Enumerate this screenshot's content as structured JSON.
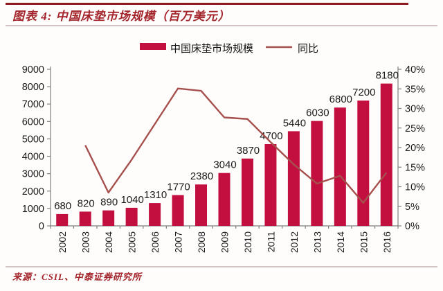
{
  "header": {
    "title": "图表 4: 中国床垫市场规模（百万美元）"
  },
  "legend": {
    "bar_label": "中国床垫市场规模",
    "line_label": "同比"
  },
  "footer": {
    "source": "来源：CSIL、中泰证券研究所"
  },
  "colors": {
    "bar": "#c30e40",
    "line": "#a6504d",
    "title_red": "#a3242a",
    "rule_dark": "#8c1c20",
    "rule_light": "#d2c3c2",
    "axis": "#7f7f7f",
    "label_text": "#1a1a1a"
  },
  "chart_data": {
    "type": "bar",
    "title": "中国床垫市场规模（百万美元）",
    "categories": [
      "2002",
      "2003",
      "2004",
      "2005",
      "2006",
      "2007",
      "2008",
      "2009",
      "2010",
      "2011",
      "2012",
      "2013",
      "2014",
      "2015",
      "2016"
    ],
    "series": [
      {
        "name": "中国床垫市场规模",
        "type": "bar",
        "axis": "left",
        "values": [
          680,
          820,
          890,
          1040,
          1310,
          1770,
          2380,
          3040,
          3870,
          4700,
          5440,
          6030,
          6800,
          7200,
          8180
        ]
      },
      {
        "name": "同比",
        "type": "line",
        "axis": "right",
        "values_percent": [
          null,
          20.6,
          8.5,
          16.9,
          26.0,
          35.1,
          34.5,
          27.7,
          27.3,
          21.4,
          15.7,
          10.8,
          12.8,
          5.9,
          13.6
        ]
      }
    ],
    "left_axis": {
      "min": 0,
      "max": 9000,
      "step": 1000
    },
    "right_axis": {
      "min": 0,
      "max": 40,
      "step": 5,
      "format": "percent"
    },
    "bar_value_labels_visible": true,
    "legend_position": "top",
    "grid": false
  }
}
